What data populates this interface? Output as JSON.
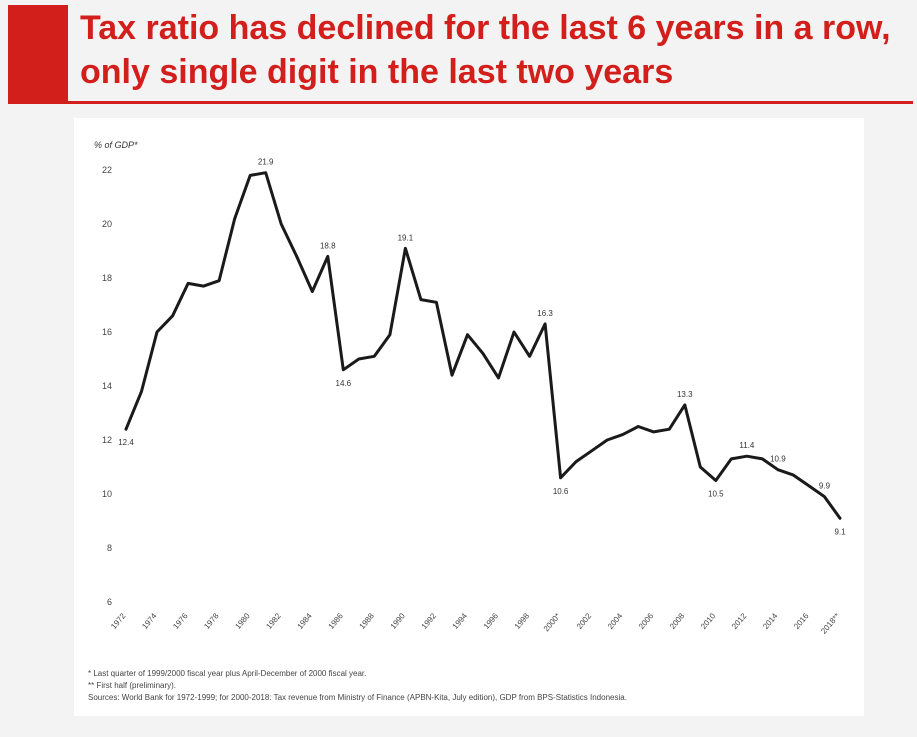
{
  "title": "Tax ratio has declined for the last 6 years in a row, only single digit in the last two years",
  "colors": {
    "accent": "#d31f1c",
    "line": "#1a1a1a"
  },
  "chart_data": {
    "type": "line",
    "ylabel": "% of GDP*",
    "ylim": [
      6,
      22
    ],
    "yticks": [
      6,
      8,
      10,
      12,
      14,
      16,
      18,
      20,
      22
    ],
    "grid": false,
    "x": [
      1972,
      1973,
      1974,
      1975,
      1976,
      1977,
      1978,
      1979,
      1980,
      1981,
      1982,
      1983,
      1984,
      1985,
      1986,
      1987,
      1988,
      1989,
      1990,
      1991,
      1992,
      1993,
      1994,
      1995,
      1996,
      1997,
      1998,
      1999,
      2000,
      2001,
      2002,
      2003,
      2004,
      2005,
      2006,
      2007,
      2008,
      2009,
      2010,
      2011,
      2012,
      2013,
      2014,
      2015,
      2016,
      2017,
      2018
    ],
    "xtick_labels": [
      "1972",
      "1974",
      "1976",
      "1978",
      "1980",
      "1982",
      "1984",
      "1986",
      "1988",
      "1990",
      "1992",
      "1994",
      "1996",
      "1998",
      "2000*",
      "2002",
      "2004",
      "2006",
      "2008",
      "2010",
      "2012",
      "2014",
      "2016",
      "2018**"
    ],
    "values": [
      12.4,
      13.8,
      16.0,
      16.6,
      17.8,
      17.7,
      17.9,
      20.2,
      21.8,
      21.9,
      20.0,
      18.8,
      17.5,
      18.8,
      14.6,
      15.0,
      15.1,
      15.9,
      19.1,
      17.2,
      17.1,
      14.4,
      15.9,
      15.2,
      14.3,
      16.0,
      15.1,
      16.3,
      10.6,
      11.2,
      11.6,
      12.0,
      12.2,
      12.5,
      12.3,
      12.4,
      13.3,
      11.0,
      10.5,
      11.3,
      11.4,
      11.3,
      10.9,
      10.7,
      10.3,
      9.9,
      9.1
    ],
    "data_labels": [
      {
        "x": 1972,
        "y": 12.4,
        "text": "12.4",
        "pos": "below"
      },
      {
        "x": 1981,
        "y": 21.9,
        "text": "21.9",
        "pos": "above"
      },
      {
        "x": 1985,
        "y": 18.8,
        "text": "18.8",
        "pos": "above"
      },
      {
        "x": 1986,
        "y": 14.6,
        "text": "14.6",
        "pos": "below"
      },
      {
        "x": 1990,
        "y": 19.1,
        "text": "19.1",
        "pos": "above"
      },
      {
        "x": 1999,
        "y": 16.3,
        "text": "16.3",
        "pos": "above"
      },
      {
        "x": 2000,
        "y": 10.6,
        "text": "10.6",
        "pos": "below"
      },
      {
        "x": 2008,
        "y": 13.3,
        "text": "13.3",
        "pos": "above"
      },
      {
        "x": 2010,
        "y": 10.5,
        "text": "10.5",
        "pos": "below"
      },
      {
        "x": 2012,
        "y": 11.4,
        "text": "11.4",
        "pos": "above"
      },
      {
        "x": 2014,
        "y": 10.9,
        "text": "10.9",
        "pos": "above"
      },
      {
        "x": 2017,
        "y": 9.9,
        "text": "9.9",
        "pos": "above"
      },
      {
        "x": 2018,
        "y": 9.1,
        "text": "9.1",
        "pos": "below"
      }
    ]
  },
  "notes": [
    "* Last quarter of 1999/2000 fiscal year plus April-December of 2000 fiscal year.",
    "** First half (preliminary).",
    "Sources: World Bank for 1972-1999; for 2000-2018: Tax revenue from Ministry of Finance (APBN-Kita, July edition), GDP from BPS-Statistics Indonesia."
  ]
}
